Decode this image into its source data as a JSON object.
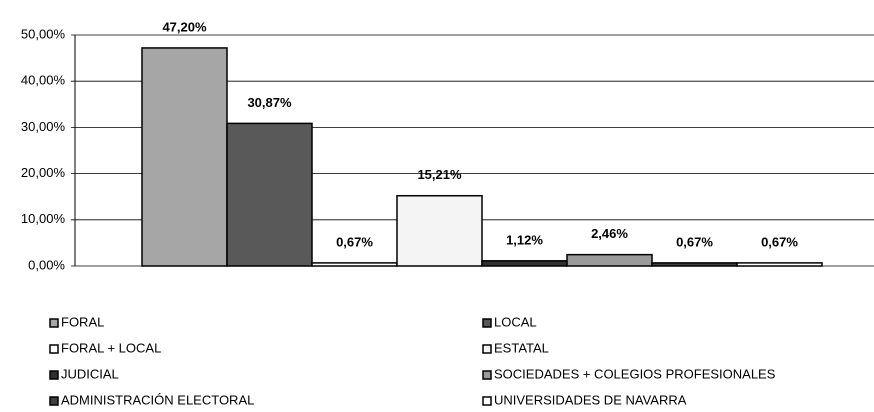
{
  "chart_data": {
    "type": "bar",
    "series": [
      {
        "name": "FORAL",
        "color": "#a6a6a6",
        "values": [
          47.2
        ],
        "value_labels": [
          "47,20%"
        ]
      },
      {
        "name": "LOCAL",
        "color": "#595959",
        "values": [
          30.87
        ],
        "value_labels": [
          "30,87%"
        ]
      },
      {
        "name": "FORAL + LOCAL",
        "color": "#ffffff",
        "values": [
          0.67
        ],
        "value_labels": [
          "0,67%"
        ]
      },
      {
        "name": "ESTATAL",
        "color": "#f4f4f4",
        "values": [
          15.21
        ],
        "value_labels": [
          "15,21%"
        ]
      },
      {
        "name": "JUDICIAL",
        "color": "#303030",
        "values": [
          1.12
        ],
        "value_labels": [
          "1,12%"
        ]
      },
      {
        "name": "SOCIEDADES + COLEGIOS PROFESIONALES",
        "color": "#9a9a9a",
        "values": [
          2.46
        ],
        "value_labels": [
          "2,46%"
        ]
      },
      {
        "name": "ADMINISTRACIÓN ELECTORAL",
        "color": "#404040",
        "values": [
          0.67
        ],
        "value_labels": [
          "0,67%"
        ]
      },
      {
        "name": "UNIVERSIDADES DE NAVARRA",
        "color": "#ffffff",
        "values": [
          0.67
        ],
        "value_labels": [
          "0,67%"
        ]
      }
    ],
    "ylim": [
      0,
      50
    ],
    "yticks": [
      {
        "value": 0,
        "label": "0,00%"
      },
      {
        "value": 10,
        "label": "10,00%"
      },
      {
        "value": 20,
        "label": "20,00%"
      },
      {
        "value": 30,
        "label": "30,00%"
      },
      {
        "value": 40,
        "label": "40,00%"
      },
      {
        "value": 50,
        "label": "50,00%"
      }
    ],
    "grid": true
  }
}
